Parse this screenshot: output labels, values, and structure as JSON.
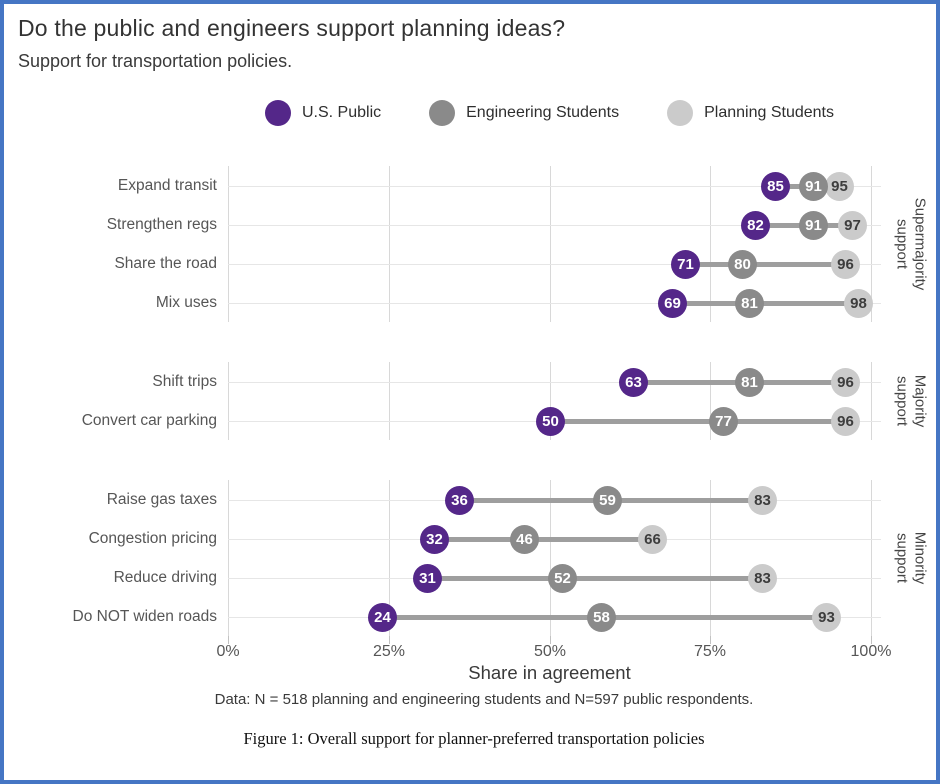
{
  "window": {
    "border_color": "#4576c4"
  },
  "header": {
    "title": "Do the public and engineers support planning ideas?",
    "subtitle": "Support for transportation policies."
  },
  "legend": {
    "items": [
      {
        "key": "public",
        "label": "U.S. Public"
      },
      {
        "key": "engineering",
        "label": "Engineering Students"
      },
      {
        "key": "planning",
        "label": "Planning Students"
      }
    ]
  },
  "colors": {
    "public": "#542789",
    "engineering": "#8a8a8a",
    "planning": "#cbcbcb",
    "connector": "#9e9e9e",
    "dot_text_light": "#ffffff",
    "dot_text_dark": "#3d3d3d",
    "grid_vertical": "#d8d8d8",
    "grid_horizontal": "#e6e6e6",
    "axis_tick": "#c2c2c2",
    "frame_border": "#4576c4"
  },
  "chart_data": {
    "type": "dumbbell-dot",
    "title": "Do the public and engineers support planning ideas?",
    "subtitle": "Support for transportation policies.",
    "xlabel": "Share in agreement",
    "xlim": [
      0,
      100
    ],
    "grid": true,
    "legend_position": "top",
    "x_ticks": [
      {
        "value": 0,
        "label": "0%"
      },
      {
        "value": 25,
        "label": "25%"
      },
      {
        "value": 50,
        "label": "50%"
      },
      {
        "value": 75,
        "label": "75%"
      },
      {
        "value": 100,
        "label": "100%"
      }
    ],
    "series_names": [
      "U.S. Public",
      "Engineering Students",
      "Planning Students"
    ],
    "groups": [
      {
        "key": "supermajority",
        "label_lines": [
          "Supermajority",
          "support"
        ],
        "rows": [
          {
            "category": "Expand transit",
            "public": 85,
            "engineering": 91,
            "planning": 95
          },
          {
            "category": "Strengthen regs",
            "public": 82,
            "engineering": 91,
            "planning": 97
          },
          {
            "category": "Share the road",
            "public": 71,
            "engineering": 80,
            "planning": 96
          },
          {
            "category": "Mix uses",
            "public": 69,
            "engineering": 81,
            "planning": 98
          }
        ]
      },
      {
        "key": "majority",
        "label_lines": [
          "Majority",
          "support"
        ],
        "rows": [
          {
            "category": "Shift trips",
            "public": 63,
            "engineering": 81,
            "planning": 96
          },
          {
            "category": "Convert car parking",
            "public": 50,
            "engineering": 77,
            "planning": 96
          }
        ]
      },
      {
        "key": "minority",
        "label_lines": [
          "Minority",
          "support"
        ],
        "rows": [
          {
            "category": "Raise gas taxes",
            "public": 36,
            "engineering": 59,
            "planning": 83
          },
          {
            "category": "Congestion pricing",
            "public": 32,
            "engineering": 46,
            "planning": 66
          },
          {
            "category": "Reduce driving",
            "public": 31,
            "engineering": 52,
            "planning": 83
          },
          {
            "category": "Do NOT widen roads",
            "public": 24,
            "engineering": 58,
            "planning": 93
          }
        ]
      }
    ]
  },
  "footer": {
    "data_note": "Data: N = 518 planning and engineering students and N=597 public respondents.",
    "figure_caption": "Figure 1: Overall support for planner-preferred transportation policies"
  }
}
